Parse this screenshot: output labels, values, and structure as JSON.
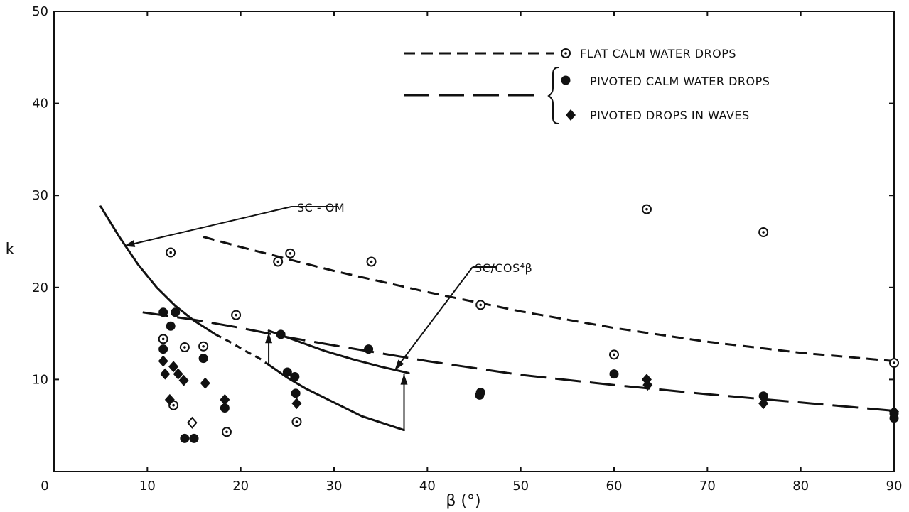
{
  "chart_data": {
    "type": "scatter",
    "title": "",
    "xlabel": "β (°)",
    "ylabel": "k",
    "xlim": [
      0,
      90
    ],
    "ylim": [
      0,
      50
    ],
    "x_ticks": [
      0,
      10,
      20,
      30,
      40,
      50,
      60,
      70,
      80,
      90
    ],
    "y_ticks": [
      10,
      20,
      30,
      40,
      50
    ],
    "grid": false,
    "legend_position": "top-right",
    "legend": {
      "flat": "FLAT CALM WATER DROPS",
      "pivoted_calm": "PIVOTED CALM WATER DROPS",
      "pivoted_waves": "PIVOTED DROPS IN WAVES"
    },
    "series": [
      {
        "name": "FLAT CALM WATER DROPS",
        "marker": "dotted-circle",
        "points": [
          [
            12.5,
            23.8
          ],
          [
            11.7,
            14.4
          ],
          [
            14.0,
            13.5
          ],
          [
            16.0,
            13.6
          ],
          [
            12.8,
            7.2
          ],
          [
            18.5,
            4.3
          ],
          [
            19.5,
            17.0
          ],
          [
            24.0,
            22.8
          ],
          [
            25.3,
            23.7
          ],
          [
            34.0,
            22.8
          ],
          [
            26.0,
            5.4
          ],
          [
            45.7,
            18.1
          ],
          [
            60.0,
            12.7
          ],
          [
            63.5,
            28.5
          ],
          [
            76.0,
            26.0
          ],
          [
            90.0,
            11.8
          ]
        ]
      },
      {
        "name": "PIVOTED CALM WATER DROPS",
        "marker": "filled-circle",
        "points": [
          [
            11.7,
            17.3
          ],
          [
            13.0,
            17.3
          ],
          [
            12.5,
            15.8
          ],
          [
            11.7,
            13.3
          ],
          [
            16.0,
            12.3
          ],
          [
            14.0,
            3.6
          ],
          [
            15.0,
            3.6
          ],
          [
            18.3,
            6.9
          ],
          [
            24.3,
            14.9
          ],
          [
            25.0,
            10.8
          ],
          [
            25.8,
            10.3
          ],
          [
            25.9,
            8.5
          ],
          [
            33.7,
            13.3
          ],
          [
            45.7,
            8.6
          ],
          [
            45.6,
            8.3
          ],
          [
            60.0,
            10.6
          ],
          [
            76.0,
            8.2
          ],
          [
            90.0,
            6.3
          ],
          [
            90.0,
            5.8
          ]
        ]
      },
      {
        "name": "PIVOTED DROPS IN WAVES",
        "marker": "filled-diamond",
        "points": [
          [
            11.7,
            12.0
          ],
          [
            11.9,
            10.6
          ],
          [
            12.4,
            7.8
          ],
          [
            12.8,
            11.4
          ],
          [
            13.3,
            10.6
          ],
          [
            13.9,
            9.9
          ],
          [
            16.2,
            9.6
          ],
          [
            18.3,
            7.8
          ],
          [
            26.0,
            7.4
          ],
          [
            63.5,
            10.0
          ],
          [
            63.6,
            9.4
          ],
          [
            76.0,
            7.4
          ],
          [
            90.0,
            6.5
          ]
        ]
      },
      {
        "name": "",
        "marker": "open-diamond",
        "points": [
          [
            14.8,
            5.3
          ]
        ]
      },
      {
        "name": "",
        "line_style": "short-dash",
        "points": [
          [
            16,
            25.5
          ],
          [
            20,
            24.4
          ],
          [
            30,
            21.8
          ],
          [
            40,
            19.5
          ],
          [
            50,
            17.4
          ],
          [
            60,
            15.6
          ],
          [
            70,
            14.1
          ],
          [
            80,
            12.9
          ],
          [
            90,
            12.0
          ]
        ]
      },
      {
        "name": "",
        "line_style": "long-dash",
        "points": [
          [
            9.5,
            17.3
          ],
          [
            15,
            16.5
          ],
          [
            20,
            15.6
          ],
          [
            25,
            14.6
          ],
          [
            30,
            13.7
          ],
          [
            40,
            12.0
          ],
          [
            50,
            10.5
          ],
          [
            60,
            9.4
          ],
          [
            70,
            8.4
          ],
          [
            80,
            7.5
          ],
          [
            90,
            6.6
          ]
        ]
      },
      {
        "name": "",
        "line_style": "solid",
        "points": [
          [
            5,
            28.8
          ],
          [
            7,
            25.5
          ],
          [
            9,
            22.5
          ],
          [
            11,
            20.0
          ],
          [
            13,
            18.0
          ],
          [
            15,
            16.4
          ],
          [
            17.3,
            14.9
          ]
        ]
      },
      {
        "name": "",
        "line_style": "dashed",
        "points": [
          [
            17.3,
            14.9
          ],
          [
            19,
            14.0
          ],
          [
            20.5,
            13.1
          ],
          [
            22,
            12.3
          ],
          [
            23,
            11.6
          ]
        ]
      },
      {
        "name": "",
        "line_style": "solid",
        "points": [
          [
            23,
            11.6
          ],
          [
            25,
            10.2
          ],
          [
            27,
            9.0
          ],
          [
            30,
            7.5
          ],
          [
            33,
            6.0
          ],
          [
            37.5,
            4.5
          ]
        ]
      },
      {
        "name": "",
        "line_style": "solid",
        "points": [
          [
            23,
            15.3
          ],
          [
            26,
            14.2
          ],
          [
            29,
            13.1
          ],
          [
            32,
            12.2
          ],
          [
            35,
            11.4
          ],
          [
            38,
            10.7
          ]
        ]
      }
    ],
    "annotations": [
      {
        "text": "SC - OM",
        "points_to": [
          7.5,
          24.5
        ]
      },
      {
        "text": "SC/COS⁴β",
        "points_to": [
          36.5,
          11.0
        ]
      }
    ]
  }
}
